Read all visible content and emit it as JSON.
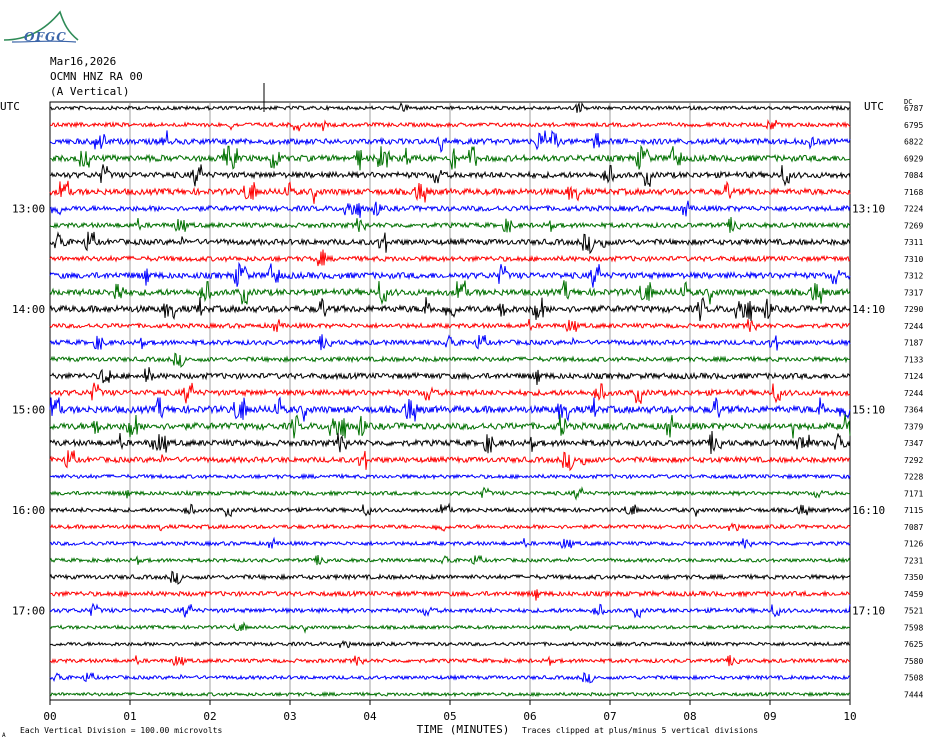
{
  "logo": {
    "text": "OFGC",
    "color": "#3a64a8",
    "swoosh_color": "#2e8b57"
  },
  "header": {
    "date": "Mar16,2026",
    "station": "OCMN HNZ RA 00",
    "component": "(A Vertical)",
    "left_tz": "UTC",
    "right_tz": "UTC",
    "dc_label": "DC"
  },
  "chart_data": {
    "type": "line",
    "title": "Mar16,2026 OCMN HNZ RA 00 (A Vertical)",
    "xlabel": "TIME (MINUTES)",
    "x_ticks": [
      "00",
      "01",
      "02",
      "03",
      "04",
      "05",
      "06",
      "07",
      "08",
      "09",
      "10"
    ],
    "xlim": [
      0,
      10
    ],
    "grid": true,
    "trace_colors": [
      "#000000",
      "#ff0000",
      "#0000ff",
      "#007000"
    ],
    "left_hour_labels": [
      {
        "row": 6,
        "label": "13:00"
      },
      {
        "row": 12,
        "label": "14:00"
      },
      {
        "row": 18,
        "label": "15:00"
      },
      {
        "row": 24,
        "label": "16:00"
      },
      {
        "row": 30,
        "label": "17:00"
      }
    ],
    "right_hour_labels": [
      {
        "row": 6,
        "label": "13:10"
      },
      {
        "row": 12,
        "label": "14:10"
      },
      {
        "row": 18,
        "label": "15:10"
      },
      {
        "row": 24,
        "label": "16:10"
      },
      {
        "row": 30,
        "label": "17:10"
      }
    ],
    "dc_offsets": [
      6787,
      6795,
      6822,
      6929,
      7084,
      7168,
      7224,
      7269,
      7311,
      7310,
      7312,
      7317,
      7290,
      7244,
      7187,
      7133,
      7124,
      7244,
      7364,
      7379,
      7347,
      7292,
      7228,
      7171,
      7115,
      7087,
      7126,
      7231,
      7350,
      7459,
      7521,
      7598,
      7625,
      7580,
      7508,
      7444
    ],
    "trace_activity": [
      0.25,
      0.35,
      0.7,
      0.8,
      0.75,
      0.8,
      0.6,
      0.5,
      0.7,
      0.55,
      0.8,
      0.85,
      0.9,
      0.45,
      0.5,
      0.45,
      0.7,
      0.7,
      1.0,
      0.9,
      0.75,
      0.65,
      0.3,
      0.3,
      0.35,
      0.3,
      0.3,
      0.25,
      0.4,
      0.5,
      0.4,
      0.2,
      0.25,
      0.3,
      0.25,
      0.2
    ]
  },
  "footer": {
    "scale_note": "Each Vertical Division =  100.00 microvolts",
    "clip_note": "Traces clipped at plus/minus 5 vertical divisions",
    "corner_mark": "A"
  }
}
